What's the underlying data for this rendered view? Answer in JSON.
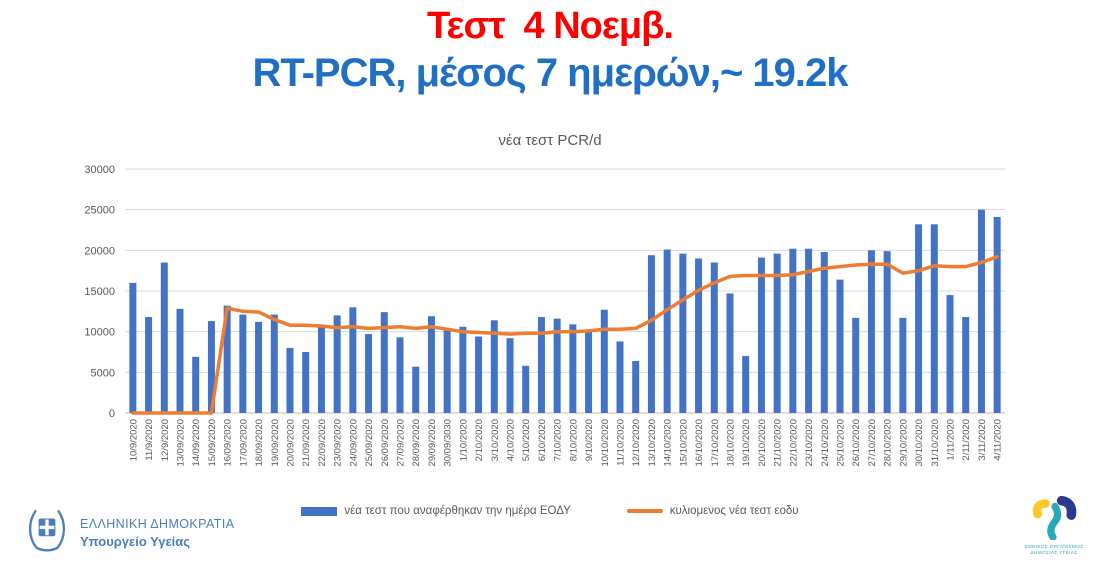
{
  "header": {
    "title_line1": "Τεστ  4 Νοεμβ.",
    "title_line1_color": "#fe0000",
    "title_line2": "RT-PCR, μέσος 7 ημερών,~ 19.2k",
    "title_line2_color": "#1f6fc5"
  },
  "chart_data": {
    "type": "bar",
    "title": "νέα τεστ PCR/d",
    "axis_text_color": "#595959",
    "grid": true,
    "legend_position": "bottom",
    "ylim": [
      0,
      30000
    ],
    "yticks": [
      0,
      5000,
      10000,
      15000,
      20000,
      25000,
      30000
    ],
    "categories": [
      "10/9/2020",
      "11/9/2020",
      "12/9/2020",
      "13/09/2020",
      "14/09/2020",
      "15/09/2020",
      "16/09/2020",
      "17/09/2020",
      "18/09/2020",
      "19/09/2020",
      "20/09/2020",
      "21/09/2020",
      "22/09/2020",
      "23/09/2020",
      "24/09/2020",
      "25/09/2020",
      "26/09/2020",
      "27/09/2020",
      "28/09/2020",
      "29/09/2020",
      "30/09/3030",
      "1/10/2020",
      "2/10/2020",
      "3/10/2020",
      "4/10/2020",
      "5/10/2020",
      "6/10/2020",
      "7/10/2020",
      "8/10/2020",
      "9/10/2020",
      "10/10/2020",
      "11/10/2020",
      "12/10/2020",
      "13/10/2020",
      "14/10/2020",
      "15/10/2020",
      "16/10/2020",
      "17/10/2020",
      "18/10/2020",
      "19/10/2020",
      "20/10/2020",
      "21/10/2020",
      "22/10/2020",
      "23/10/2020",
      "24/10/2020",
      "25/10/2020",
      "26/10/2020",
      "27/10/2020",
      "28/10/2020",
      "29/10/2020",
      "30/10/2020",
      "31/10/2020",
      "1/11/2020",
      "2/11/2020",
      "3/11/2020",
      "4/11/2020"
    ],
    "series": [
      {
        "name": "νέα τεστ που αναφέρθηκαν την ημέρα ΕΟΔΥ",
        "type": "bar",
        "color": "#4472c4",
        "values": [
          16000,
          11800,
          18500,
          12800,
          6900,
          11300,
          13200,
          12100,
          11200,
          12100,
          8000,
          7500,
          10600,
          12000,
          13000,
          9700,
          12400,
          9300,
          5700,
          11900,
          10200,
          10600,
          9400,
          11400,
          9200,
          5800,
          11800,
          11600,
          10900,
          10000,
          12700,
          8800,
          6400,
          19400,
          20100,
          19600,
          19000,
          18500,
          14700,
          7000,
          19100,
          19600,
          20200,
          20200,
          19800,
          16400,
          11700,
          20000,
          19900,
          11700,
          23200,
          23200,
          14500,
          11800,
          25000,
          24100
        ]
      },
      {
        "name": "κυλιομενος νέα τεστ εοδυ",
        "type": "line",
        "color": "#ed7d31",
        "values": [
          0,
          0,
          0,
          0,
          0,
          0,
          12900,
          12500,
          12400,
          11500,
          10800,
          10800,
          10700,
          10500,
          10600,
          10400,
          10500,
          10600,
          10400,
          10600,
          10300,
          10000,
          9900,
          9800,
          9700,
          9800,
          9800,
          10000,
          10000,
          10100,
          10300,
          10300,
          10400,
          11400,
          12700,
          13900,
          15100,
          16000,
          16800,
          16900,
          16900,
          16900,
          17000,
          17400,
          17800,
          18000,
          18200,
          18300,
          18300,
          17200,
          17500,
          18100,
          18000,
          18000,
          18500,
          19200
        ]
      }
    ]
  },
  "footer": {
    "left": {
      "org": "ΕΛΛΗΝΙΚΗ ΔΗΜΟΚΡΑΤΙΑ",
      "dept": "Υπουργείο Υγείας",
      "color": "#4a7ebb"
    },
    "right": {
      "org_line1": "ΕΘΝΙΚΟΣ ΟΡΓΑΝΙΣΜΟΣ",
      "org_line2": "ΔΗΜΟΣΙΑΣ ΥΓΕΙΑΣ",
      "color": "#2aa9b8",
      "logo_teal": "#29a8b5",
      "logo_yellow": "#ffc72c",
      "logo_blue": "#2b3990"
    }
  }
}
